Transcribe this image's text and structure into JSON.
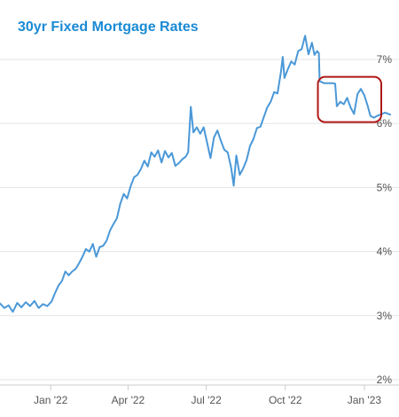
{
  "chart_data": {
    "type": "line",
    "title": "30yr Fixed Mortgage Rates",
    "xlabel": "",
    "ylabel": "",
    "ylim": [
      2,
      7.5
    ],
    "xlim": [
      "2021-11-03",
      "2023-01-31"
    ],
    "grid": true,
    "legend": "none",
    "colors": {
      "line": "#4a98d8",
      "highlight": "#b01818",
      "title": "#1a8ad4"
    },
    "y_ticks": [
      {
        "value": 2,
        "label": "2%"
      },
      {
        "value": 3,
        "label": "3%"
      },
      {
        "value": 4,
        "label": "4%"
      },
      {
        "value": 5,
        "label": "5%"
      },
      {
        "value": 6,
        "label": "6%"
      },
      {
        "value": 7,
        "label": "7%"
      }
    ],
    "x_ticks": [
      {
        "date": "2022-01-01",
        "label": "Jan '22"
      },
      {
        "date": "2022-04-01",
        "label": "Apr '22"
      },
      {
        "date": "2022-07-01",
        "label": "Jul '22"
      },
      {
        "date": "2022-10-01",
        "label": "Oct '22"
      },
      {
        "date": "2023-01-01",
        "label": "Jan '23"
      }
    ],
    "highlight_region": {
      "x0": "2022-11-10",
      "x1": "2023-01-31",
      "y0": 6.05,
      "y1": 6.7
    },
    "series": [
      {
        "name": "",
        "points": [
          [
            "2021-11-03",
            3.19
          ],
          [
            "2021-11-08",
            3.12
          ],
          [
            "2021-11-13",
            3.16
          ],
          [
            "2021-11-18",
            3.06
          ],
          [
            "2021-11-23",
            3.2
          ],
          [
            "2021-11-28",
            3.13
          ],
          [
            "2021-12-03",
            3.21
          ],
          [
            "2021-12-08",
            3.15
          ],
          [
            "2021-12-13",
            3.23
          ],
          [
            "2021-12-18",
            3.12
          ],
          [
            "2021-12-23",
            3.18
          ],
          [
            "2021-12-28",
            3.15
          ],
          [
            "2022-01-02",
            3.22
          ],
          [
            "2022-01-06",
            3.35
          ],
          [
            "2022-01-10",
            3.47
          ],
          [
            "2022-01-14",
            3.54
          ],
          [
            "2022-01-18",
            3.69
          ],
          [
            "2022-01-22",
            3.63
          ],
          [
            "2022-01-26",
            3.69
          ],
          [
            "2022-01-30",
            3.73
          ],
          [
            "2022-02-03",
            3.82
          ],
          [
            "2022-02-07",
            3.92
          ],
          [
            "2022-02-11",
            4.04
          ],
          [
            "2022-02-15",
            4.0
          ],
          [
            "2022-02-19",
            4.12
          ],
          [
            "2022-02-23",
            3.92
          ],
          [
            "2022-02-27",
            4.07
          ],
          [
            "2022-03-03",
            4.09
          ],
          [
            "2022-03-07",
            4.17
          ],
          [
            "2022-03-11",
            4.33
          ],
          [
            "2022-03-15",
            4.43
          ],
          [
            "2022-03-19",
            4.52
          ],
          [
            "2022-03-23",
            4.75
          ],
          [
            "2022-03-27",
            4.9
          ],
          [
            "2022-03-31",
            4.83
          ],
          [
            "2022-04-04",
            5.02
          ],
          [
            "2022-04-08",
            5.16
          ],
          [
            "2022-04-12",
            5.2
          ],
          [
            "2022-04-16",
            5.29
          ],
          [
            "2022-04-20",
            5.42
          ],
          [
            "2022-04-24",
            5.33
          ],
          [
            "2022-04-28",
            5.55
          ],
          [
            "2022-05-02",
            5.48
          ],
          [
            "2022-05-06",
            5.58
          ],
          [
            "2022-05-10",
            5.39
          ],
          [
            "2022-05-14",
            5.57
          ],
          [
            "2022-05-18",
            5.47
          ],
          [
            "2022-05-22",
            5.54
          ],
          [
            "2022-05-26",
            5.34
          ],
          [
            "2022-05-30",
            5.38
          ],
          [
            "2022-06-03",
            5.44
          ],
          [
            "2022-06-07",
            5.48
          ],
          [
            "2022-06-10",
            5.55
          ],
          [
            "2022-06-13",
            6.26
          ],
          [
            "2022-06-16",
            5.86
          ],
          [
            "2022-06-20",
            5.94
          ],
          [
            "2022-06-24",
            5.84
          ],
          [
            "2022-06-28",
            5.94
          ],
          [
            "2022-07-02",
            5.7
          ],
          [
            "2022-07-06",
            5.46
          ],
          [
            "2022-07-10",
            5.78
          ],
          [
            "2022-07-14",
            5.89
          ],
          [
            "2022-07-18",
            5.73
          ],
          [
            "2022-07-22",
            5.59
          ],
          [
            "2022-07-26",
            5.55
          ],
          [
            "2022-07-30",
            5.31
          ],
          [
            "2022-08-02",
            5.03
          ],
          [
            "2022-08-05",
            5.5
          ],
          [
            "2022-08-09",
            5.2
          ],
          [
            "2022-08-13",
            5.3
          ],
          [
            "2022-08-17",
            5.43
          ],
          [
            "2022-08-21",
            5.65
          ],
          [
            "2022-08-25",
            5.76
          ],
          [
            "2022-08-29",
            5.93
          ],
          [
            "2022-09-02",
            5.95
          ],
          [
            "2022-09-06",
            6.1
          ],
          [
            "2022-09-10",
            6.25
          ],
          [
            "2022-09-14",
            6.34
          ],
          [
            "2022-09-18",
            6.49
          ],
          [
            "2022-09-22",
            6.47
          ],
          [
            "2022-09-26",
            6.81
          ],
          [
            "2022-09-28",
            7.04
          ],
          [
            "2022-09-30",
            6.71
          ],
          [
            "2022-10-04",
            6.85
          ],
          [
            "2022-10-08",
            6.97
          ],
          [
            "2022-10-12",
            6.92
          ],
          [
            "2022-10-16",
            7.13
          ],
          [
            "2022-10-20",
            7.16
          ],
          [
            "2022-10-24",
            7.37
          ],
          [
            "2022-10-28",
            7.08
          ],
          [
            "2022-11-01",
            7.26
          ],
          [
            "2022-11-04",
            7.07
          ],
          [
            "2022-11-07",
            7.13
          ],
          [
            "2022-11-09",
            7.1
          ],
          [
            "2022-11-10",
            6.66
          ],
          [
            "2022-11-15",
            6.63
          ],
          [
            "2022-11-20",
            6.63
          ],
          [
            "2022-11-25",
            6.63
          ],
          [
            "2022-11-28",
            6.62
          ],
          [
            "2022-11-30",
            6.27
          ],
          [
            "2022-12-04",
            6.34
          ],
          [
            "2022-12-08",
            6.3
          ],
          [
            "2022-12-12",
            6.4
          ],
          [
            "2022-12-16",
            6.25
          ],
          [
            "2022-12-20",
            6.15
          ],
          [
            "2022-12-24",
            6.46
          ],
          [
            "2022-12-28",
            6.54
          ],
          [
            "2023-01-01",
            6.44
          ],
          [
            "2023-01-05",
            6.27
          ],
          [
            "2023-01-08",
            6.12
          ],
          [
            "2023-01-12",
            6.09
          ],
          [
            "2023-01-16",
            6.12
          ],
          [
            "2023-01-20",
            6.14
          ],
          [
            "2023-01-25",
            6.17
          ],
          [
            "2023-01-31",
            6.14
          ]
        ]
      }
    ]
  }
}
